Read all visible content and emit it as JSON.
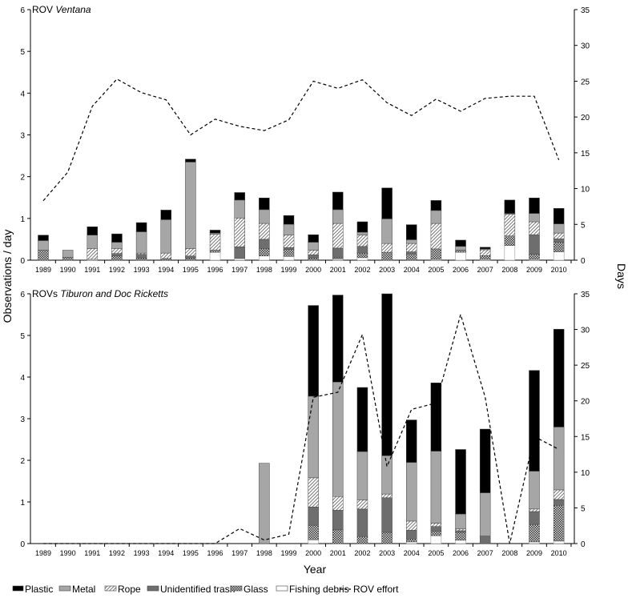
{
  "chart_data": {
    "type": "bar",
    "stacked": true,
    "ylabel": "Observations / day",
    "y2label": "Days",
    "xlabel": "Year",
    "categories": [
      "1989",
      "1990",
      "1991",
      "1992",
      "1993",
      "1994",
      "1995",
      "1996",
      "1997",
      "1998",
      "1999",
      "2000",
      "2001",
      "2002",
      "2003",
      "2004",
      "2005",
      "2006",
      "2007",
      "2008",
      "2009",
      "2010"
    ],
    "legend_position": "bottom",
    "legend": [
      {
        "key": "plastic",
        "label": "Plastic"
      },
      {
        "key": "metal",
        "label": "Metal"
      },
      {
        "key": "rope",
        "label": "Rope"
      },
      {
        "key": "unidentified",
        "label": "Unidentified trash"
      },
      {
        "key": "glass",
        "label": "Glass"
      },
      {
        "key": "fishing",
        "label": "Fishing debris"
      },
      {
        "key": "effort",
        "label": "ROV effort"
      }
    ],
    "stack_order": [
      "fishing",
      "glass",
      "unidentified",
      "rope",
      "metal",
      "plastic"
    ],
    "colors": {
      "plastic": "#000000",
      "metal": "#a6a6a6",
      "rope": "hatch",
      "unidentified": "#6e6e6e",
      "glass": "crosshatch",
      "fishing": "#ffffff"
    },
    "panels": [
      {
        "title_prefix": "ROV ",
        "title_italic": "Ventana",
        "title_suffix": "",
        "ylim": [
          0,
          6
        ],
        "yticks": [
          "0",
          "1",
          "2",
          "3",
          "4",
          "5",
          "6"
        ],
        "y2lim": [
          0,
          35
        ],
        "y2ticks": [
          "0",
          "5",
          "10",
          "15",
          "20",
          "25",
          "30",
          "35"
        ],
        "series": {
          "fishing": [
            0,
            0,
            0.02,
            0,
            0,
            0,
            0,
            0.19,
            0.04,
            0.1,
            0.09,
            0,
            0.03,
            0.06,
            0,
            0,
            0.02,
            0.19,
            0.02,
            0.35,
            0.02,
            0.2
          ],
          "glass": [
            0.24,
            0.07,
            0,
            0.1,
            0.05,
            0.04,
            0.05,
            0.05,
            0,
            0.18,
            0.17,
            0.05,
            0.04,
            0.11,
            0.19,
            0.15,
            0.25,
            0.05,
            0.09,
            0.23,
            0.12,
            0.23
          ],
          "unidentified": [
            0,
            0,
            0,
            0.06,
            0.09,
            0,
            0.05,
            0,
            0.28,
            0.22,
            0.04,
            0.08,
            0.22,
            0.16,
            0,
            0.05,
            0,
            0,
            0,
            0,
            0.47,
            0.08
          ],
          "rope": [
            0,
            0,
            0.26,
            0.12,
            0.03,
            0.13,
            0.18,
            0.38,
            0.69,
            0.38,
            0.3,
            0.11,
            0.59,
            0.27,
            0.21,
            0.2,
            0.61,
            0,
            0.14,
            0.52,
            0.31,
            0.14
          ],
          "metal": [
            0.23,
            0.17,
            0.32,
            0.15,
            0.51,
            0.8,
            2.07,
            0.03,
            0.43,
            0.33,
            0.26,
            0.19,
            0.33,
            0.07,
            0.59,
            0.09,
            0.31,
            0.09,
            0.02,
            0.02,
            0.2,
            0.22
          ],
          "plastic": [
            0.13,
            0,
            0.2,
            0.2,
            0.22,
            0.23,
            0.07,
            0.07,
            0.18,
            0.28,
            0.21,
            0.18,
            0.42,
            0.25,
            0.74,
            0.36,
            0.24,
            0.15,
            0.04,
            0.32,
            0.37,
            0.37
          ]
        },
        "effort_days": [
          8.3,
          12.3,
          21.5,
          25.3,
          23.4,
          22.4,
          17.5,
          19.7,
          18.7,
          18.1,
          19.6,
          25,
          24,
          25.2,
          22,
          20.2,
          22.5,
          20.8,
          22.6,
          22.9,
          22.9,
          14
        ]
      },
      {
        "title_prefix": "ROVs ",
        "title_italic": "Tiburon and Doc Ricketts",
        "title_suffix": "",
        "ylim": [
          0,
          6
        ],
        "yticks": [
          "0",
          "1",
          "2",
          "3",
          "4",
          "5",
          "6"
        ],
        "y2lim": [
          0,
          35
        ],
        "y2ticks": [
          "0",
          "5",
          "10",
          "15",
          "20",
          "25",
          "30",
          "35"
        ],
        "series": {
          "fishing": [
            0,
            0,
            0,
            0,
            0,
            0,
            0,
            0,
            0,
            0,
            0,
            0.09,
            0,
            0,
            0,
            0.04,
            0.19,
            0.08,
            0,
            0,
            0.04,
            0.06
          ],
          "glass": [
            0,
            0,
            0,
            0,
            0,
            0,
            0,
            0,
            0,
            0,
            0,
            0.35,
            0.33,
            0.17,
            0.27,
            0.07,
            0.11,
            0.19,
            0,
            0,
            0.42,
            0.86
          ],
          "unidentified": [
            0,
            0,
            0,
            0,
            0,
            0,
            0,
            0,
            0,
            0,
            0,
            0.44,
            0.47,
            0.66,
            0.83,
            0.21,
            0.11,
            0.04,
            0.18,
            0,
            0.31,
            0.14
          ],
          "rope": [
            0,
            0,
            0,
            0,
            0,
            0,
            0,
            0,
            0,
            0,
            0,
            0.7,
            0.33,
            0.22,
            0.09,
            0.22,
            0.08,
            0.04,
            0,
            0,
            0.06,
            0.23
          ],
          "metal": [
            0,
            0,
            0,
            0,
            0,
            0,
            0,
            0,
            0,
            1.93,
            0,
            1.96,
            2.75,
            1.16,
            0.92,
            1.41,
            1.73,
            0.36,
            1.04,
            0,
            0.91,
            1.51
          ],
          "plastic": [
            0,
            0,
            0,
            0,
            0,
            0,
            0,
            0,
            0,
            0,
            0,
            2.18,
            2.09,
            1.54,
            3.89,
            1.02,
            1.64,
            1.55,
            1.53,
            0,
            2.42,
            2.35
          ]
        },
        "effort_days": [
          0,
          0,
          0,
          0,
          0,
          0,
          0,
          0,
          2.1,
          0.5,
          1.3,
          20.5,
          21.2,
          29.3,
          10.8,
          18.8,
          19.7,
          32.1,
          20.5,
          0,
          15,
          13.2
        ]
      }
    ]
  }
}
